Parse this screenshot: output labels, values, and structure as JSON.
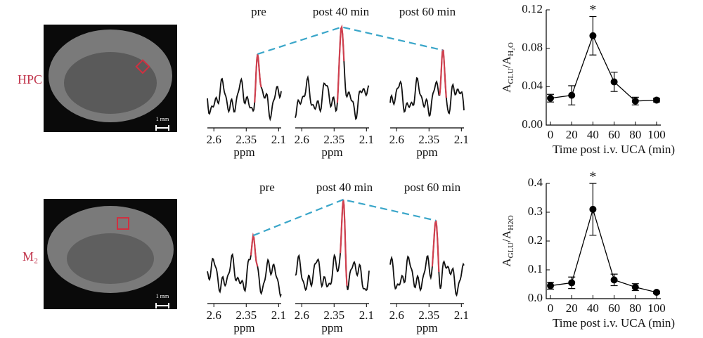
{
  "rows": [
    {
      "label": "HPC",
      "scale_bar": "1 mm",
      "spectra": [
        {
          "title": "pre",
          "xlabel": "ppm",
          "xlim": [
            2.65,
            2.08
          ],
          "xticks": [
            2.6,
            2.35,
            2.1
          ]
        },
        {
          "title": "post 40 min",
          "xlabel": "ppm",
          "xlim": [
            2.65,
            2.08
          ],
          "xticks": [
            2.6,
            2.35,
            2.1
          ]
        },
        {
          "title": "post 60 min",
          "xlabel": "ppm",
          "xlim": [
            2.65,
            2.08
          ],
          "xticks": [
            2.6,
            2.35,
            2.1
          ]
        }
      ]
    },
    {
      "label": "M₂",
      "scale_bar": "1 mm",
      "spectra": [
        {
          "title": "pre",
          "xlabel": "ppm",
          "xlim": [
            2.65,
            2.08
          ],
          "xticks": [
            2.6,
            2.35,
            2.1
          ]
        },
        {
          "title": "post 40 min",
          "xlabel": "ppm",
          "xlim": [
            2.65,
            2.08
          ],
          "xticks": [
            2.6,
            2.35,
            2.1
          ]
        },
        {
          "title": "post 60 min",
          "xlabel": "ppm",
          "xlim": [
            2.65,
            2.08
          ],
          "xticks": [
            2.6,
            2.35,
            2.1
          ]
        }
      ]
    }
  ],
  "chart_data": [
    {
      "type": "line",
      "annotation": "*",
      "xlabel": "Time post i.v. UCA (min)",
      "ylabel": {
        "base": "A",
        "num_sub": "GLU",
        "den": "/A",
        "den_sub": "H₂O"
      },
      "x": [
        0,
        20,
        40,
        60,
        80,
        100
      ],
      "values": [
        0.028,
        0.031,
        0.093,
        0.045,
        0.025,
        0.026
      ],
      "errors": [
        0.004,
        0.01,
        0.02,
        0.01,
        0.004,
        0.002
      ],
      "color": "#000000",
      "xlim": [
        -4,
        104
      ],
      "xticks": [
        0,
        20,
        40,
        60,
        80,
        100
      ],
      "ylim": [
        0,
        0.12
      ],
      "yticks": [
        {
          "value": 0,
          "label": "0.00"
        },
        0.04,
        0.08,
        0.12
      ]
    },
    {
      "type": "line",
      "annotation": "*",
      "xlabel": "Time post i.v. UCA (min)",
      "ylabel": {
        "base": "A",
        "num_sub": "GLU",
        "den": "/A",
        "den_sub": "H2O"
      },
      "x": [
        0,
        20,
        40,
        60,
        80,
        100
      ],
      "values": [
        0.045,
        0.055,
        0.31,
        0.065,
        0.04,
        0.022
      ],
      "errors": [
        0.012,
        0.02,
        0.09,
        0.02,
        0.012,
        0.004
      ],
      "color": "#000000",
      "xlim": [
        -4,
        104
      ],
      "xticks": [
        0,
        20,
        40,
        60,
        80,
        100
      ],
      "ylim": [
        0,
        0.4
      ],
      "yticks": [
        {
          "value": 0,
          "label": "0.0"
        },
        0.1,
        0.2,
        0.3,
        0.4
      ]
    }
  ]
}
